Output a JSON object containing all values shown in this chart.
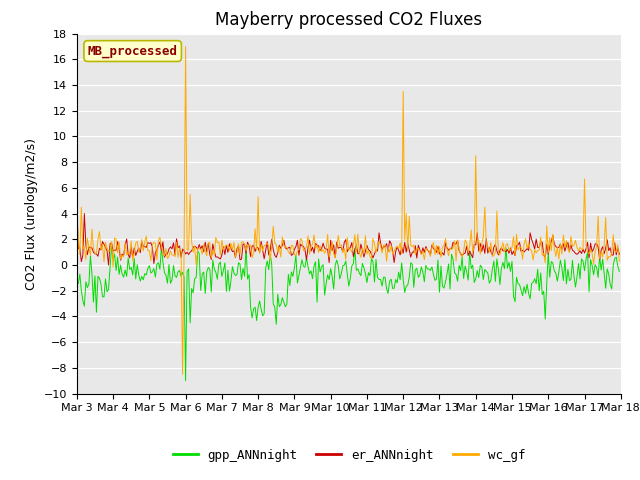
{
  "title": "Mayberry processed CO2 Fluxes",
  "ylabel": "CO2 Flux (urology/m2/s)",
  "xlabel": "",
  "ylim": [
    -10,
    18
  ],
  "yticks": [
    -10,
    -8,
    -6,
    -4,
    -2,
    0,
    2,
    4,
    6,
    8,
    10,
    12,
    14,
    16,
    18
  ],
  "xlim": [
    0,
    360
  ],
  "xtick_labels": [
    "Mar 3",
    "Mar 4",
    "Mar 5",
    "Mar 6",
    "Mar 7",
    "Mar 8",
    "Mar 9",
    "Mar 10",
    "Mar 11",
    "Mar 12",
    "Mar 13",
    "Mar 14",
    "Mar 15",
    "Mar 16",
    "Mar 17",
    "Mar 18"
  ],
  "xtick_positions": [
    0,
    24,
    48,
    72,
    96,
    120,
    144,
    168,
    192,
    216,
    240,
    264,
    288,
    312,
    336,
    360
  ],
  "background_color": "#e8e8e8",
  "legend_label": "MB_processed",
  "legend_bg": "#ffffcc",
  "legend_text_color": "#8b0000",
  "legend_border_color": "#b8b800",
  "series": {
    "gpp_ANNnight": {
      "color": "#00dd00",
      "label": "gpp_ANNnight"
    },
    "er_ANNnight": {
      "color": "#cc0000",
      "label": "er_ANNnight"
    },
    "wc_gf": {
      "color": "#ffaa00",
      "label": "wc_gf"
    }
  },
  "title_fontsize": 12,
  "axis_label_fontsize": 9,
  "tick_fontsize": 8
}
